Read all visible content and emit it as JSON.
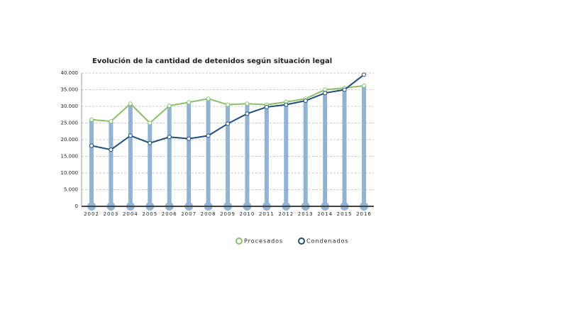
{
  "chart_data": {
    "type": "line",
    "title": "Evolución de la cantidad de detenidos según situación legal",
    "categories": [
      "2002",
      "2003",
      "2004",
      "2005",
      "2006",
      "2007",
      "2008",
      "2009",
      "2010",
      "2011",
      "2012",
      "2013",
      "2014",
      "2015",
      "2016"
    ],
    "series": [
      {
        "name": "Procesados",
        "color": "#8cbf6a",
        "values": [
          26000,
          25500,
          30800,
          25000,
          30200,
          31200,
          32300,
          30500,
          30800,
          30500,
          31300,
          32300,
          35000,
          35500,
          36200
        ]
      },
      {
        "name": "Condenados",
        "color": "#1f4e79",
        "values": [
          18200,
          17000,
          21200,
          19000,
          20800,
          20300,
          21200,
          24800,
          27800,
          29800,
          30500,
          31700,
          34000,
          35000,
          39500
        ]
      }
    ],
    "bar_color": "#93b3d3",
    "ylim": [
      0,
      40000
    ],
    "yticks": [
      0,
      {
        "value": 5000,
        "label": "5.000"
      },
      {
        "value": 10000,
        "label": "10.000"
      },
      {
        "value": 15000,
        "label": "15.000"
      },
      {
        "value": 20000,
        "label": "20.000"
      },
      {
        "value": 25000,
        "label": "25.000"
      },
      {
        "value": 30000,
        "label": "30.000"
      },
      {
        "value": 35000,
        "label": "35.000"
      },
      {
        "value": 40000,
        "label": "40.000"
      }
    ],
    "grid": true
  }
}
